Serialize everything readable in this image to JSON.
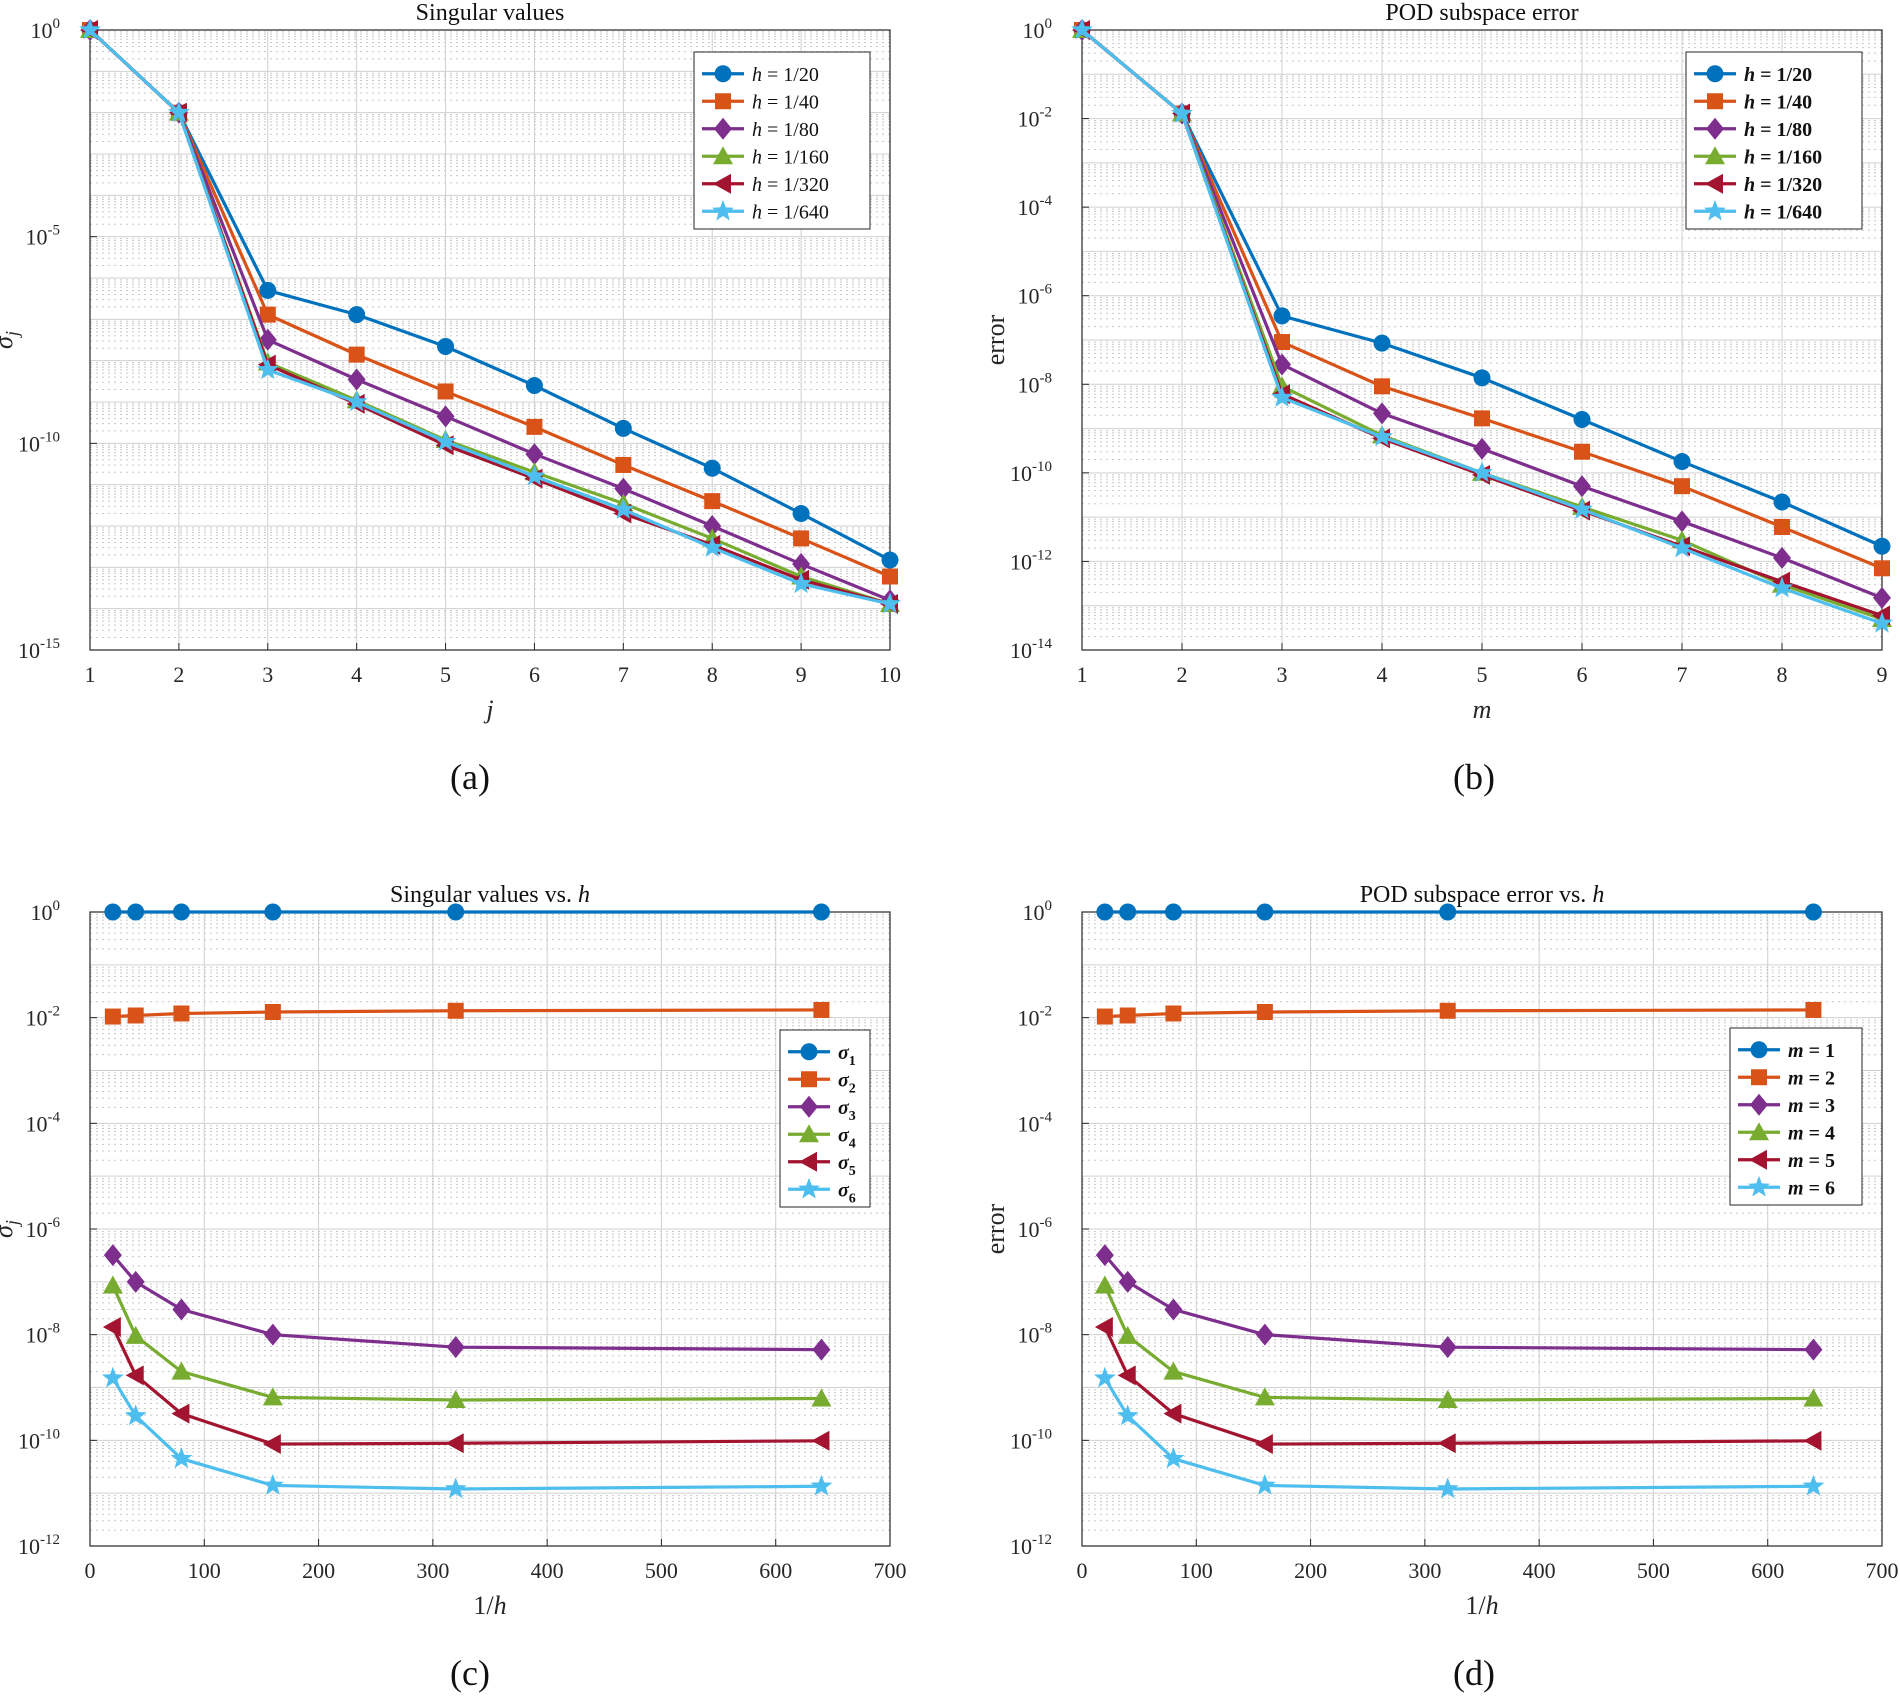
{
  "colors": [
    "#0072BD",
    "#D95319",
    "#7E2F8E",
    "#77AC30",
    "#A2142F",
    "#4DBEEE"
  ],
  "markers": [
    "circle",
    "square",
    "diamond",
    "triangle-up",
    "triangle-left",
    "star"
  ],
  "chart_data": [
    {
      "id": "a",
      "type": "line",
      "caption": "(a)",
      "title": "Singular values",
      "xlabel": "j",
      "ylabel": "σ_j",
      "yscale": "log",
      "xlim": [
        1,
        10
      ],
      "ylim": [
        1e-15,
        1
      ],
      "xticks": [
        1,
        2,
        3,
        4,
        5,
        6,
        7,
        8,
        9,
        10
      ],
      "yticks": [
        {
          "value": 1e-15,
          "base": "10",
          "exp": "-15"
        },
        {
          "value": 1e-10,
          "base": "10",
          "exp": "-10"
        },
        {
          "value": 1e-05,
          "base": "10",
          "exp": "-5"
        },
        {
          "value": 1,
          "base": "10",
          "exp": "0"
        }
      ],
      "legend_position": "top-right",
      "grid": true,
      "x": [
        1,
        2,
        3,
        4,
        5,
        6,
        7,
        8,
        9,
        10
      ],
      "series": [
        {
          "name": "h = 1/20",
          "values": [
            1,
            0.01,
            5e-07,
            1.3e-07,
            2.2e-08,
            2.5e-09,
            2.3e-10,
            2.5e-11,
            2e-12,
            1.5e-13
          ]
        },
        {
          "name": "h = 1/40",
          "values": [
            1,
            0.01,
            1.3e-07,
            1.4e-08,
            1.8e-09,
            2.5e-10,
            3e-11,
            4e-12,
            5e-13,
            6e-14
          ]
        },
        {
          "name": "h = 1/80",
          "values": [
            1,
            0.01,
            3.2e-08,
            3.5e-09,
            4.5e-10,
            5.5e-11,
            8e-12,
            1e-12,
            1.2e-13,
            1.6e-14
          ]
        },
        {
          "name": "h = 1/160",
          "values": [
            1,
            0.01,
            9e-09,
            1.1e-09,
            1.2e-10,
            2e-11,
            3.5e-12,
            5e-13,
            6e-14,
            1.3e-14
          ]
        },
        {
          "name": "h = 1/320",
          "values": [
            1,
            0.01,
            8e-09,
            9e-10,
            9e-11,
            1.4e-11,
            2e-12,
            3.5e-13,
            5e-14,
            1.3e-14
          ]
        },
        {
          "name": "h = 1/640",
          "values": [
            1,
            0.01,
            6e-09,
            1e-09,
            1.1e-10,
            1.6e-11,
            2.5e-12,
            3e-13,
            4e-14,
            1.3e-14
          ]
        }
      ]
    },
    {
      "id": "b",
      "type": "line",
      "caption": "(b)",
      "title": "POD subspace error",
      "xlabel": "m",
      "ylabel": "error",
      "yscale": "log",
      "xlim": [
        1,
        9
      ],
      "ylim": [
        1e-14,
        1
      ],
      "xticks": [
        1,
        2,
        3,
        4,
        5,
        6,
        7,
        8,
        9
      ],
      "yticks": [
        {
          "value": 1e-14,
          "base": "10",
          "exp": "-14"
        },
        {
          "value": 1e-12,
          "base": "10",
          "exp": "-12"
        },
        {
          "value": 1e-10,
          "base": "10",
          "exp": "-10"
        },
        {
          "value": 1e-08,
          "base": "10",
          "exp": "-8"
        },
        {
          "value": 1e-06,
          "base": "10",
          "exp": "-6"
        },
        {
          "value": 0.0001,
          "base": "10",
          "exp": "-4"
        },
        {
          "value": 0.01,
          "base": "10",
          "exp": "-2"
        },
        {
          "value": 1,
          "base": "10",
          "exp": "0"
        }
      ],
      "legend_position": "top-right",
      "grid": true,
      "x": [
        1,
        2,
        3,
        4,
        5,
        6,
        7,
        8,
        9
      ],
      "series": [
        {
          "name": "h = 1/20",
          "values": [
            1,
            0.013,
            3.5e-07,
            8.5e-08,
            1.4e-08,
            1.6e-09,
            1.8e-10,
            2.2e-11,
            2.2e-12
          ]
        },
        {
          "name": "h = 1/40",
          "values": [
            1,
            0.013,
            9e-08,
            9e-09,
            1.7e-09,
            3e-10,
            5e-11,
            6e-12,
            7e-13
          ]
        },
        {
          "name": "h = 1/80",
          "values": [
            1,
            0.013,
            2.8e-08,
            2.2e-09,
            3.5e-10,
            5e-11,
            8e-12,
            1.2e-12,
            1.5e-13
          ]
        },
        {
          "name": "h = 1/160",
          "values": [
            1,
            0.013,
            9e-09,
            7e-10,
            1e-10,
            1.7e-11,
            3e-12,
            3e-13,
            5e-14
          ]
        },
        {
          "name": "h = 1/320",
          "values": [
            1,
            0.013,
            6e-09,
            6e-10,
            9e-11,
            1.4e-11,
            2.2e-12,
            3.5e-13,
            6e-14
          ]
        },
        {
          "name": "h = 1/640",
          "values": [
            1,
            0.013,
            5e-09,
            6.5e-10,
            1e-10,
            1.5e-11,
            2e-12,
            2.5e-13,
            4e-14
          ]
        }
      ]
    },
    {
      "id": "c",
      "type": "line",
      "caption": "(c)",
      "title": "Singular values vs. h",
      "xlabel": "1/h",
      "ylabel": "σ_j",
      "yscale": "log",
      "xlim": [
        0,
        700
      ],
      "ylim": [
        1e-12,
        1
      ],
      "xticks": [
        0,
        100,
        200,
        300,
        400,
        500,
        600,
        700
      ],
      "yticks": [
        {
          "value": 1e-12,
          "base": "10",
          "exp": "-12"
        },
        {
          "value": 1e-10,
          "base": "10",
          "exp": "-10"
        },
        {
          "value": 1e-08,
          "base": "10",
          "exp": "-8"
        },
        {
          "value": 1e-06,
          "base": "10",
          "exp": "-6"
        },
        {
          "value": 0.0001,
          "base": "10",
          "exp": "-4"
        },
        {
          "value": 0.01,
          "base": "10",
          "exp": "-2"
        },
        {
          "value": 1,
          "base": "10",
          "exp": "0"
        }
      ],
      "legend_position": "right",
      "grid": true,
      "x": [
        20,
        40,
        80,
        160,
        320,
        640
      ],
      "series": [
        {
          "name": "σ1",
          "values": [
            1,
            1,
            1,
            1,
            1,
            1
          ]
        },
        {
          "name": "σ2",
          "values": [
            0.0105,
            0.011,
            0.012,
            0.0128,
            0.0135,
            0.014
          ]
        },
        {
          "name": "σ3",
          "values": [
            3.2e-07,
            1e-07,
            3e-08,
            1e-08,
            5.8e-09,
            5.2e-09
          ]
        },
        {
          "name": "σ4",
          "values": [
            8.5e-08,
            9.5e-09,
            2e-09,
            6.5e-10,
            5.8e-10,
            6.2e-10
          ]
        },
        {
          "name": "σ5",
          "values": [
            1.4e-08,
            1.7e-09,
            3.2e-10,
            8.5e-11,
            8.8e-11,
            9.8e-11
          ]
        },
        {
          "name": "σ6",
          "values": [
            1.5e-09,
            2.9e-10,
            4.5e-11,
            1.4e-11,
            1.2e-11,
            1.35e-11
          ]
        }
      ]
    },
    {
      "id": "d",
      "type": "line",
      "caption": "(d)",
      "title": "POD subspace error vs. h",
      "xlabel": "1/h",
      "ylabel": "error",
      "yscale": "log",
      "xlim": [
        0,
        700
      ],
      "ylim": [
        1e-12,
        1
      ],
      "xticks": [
        0,
        100,
        200,
        300,
        400,
        500,
        600,
        700
      ],
      "yticks": [
        {
          "value": 1e-12,
          "base": "10",
          "exp": "-12"
        },
        {
          "value": 1e-10,
          "base": "10",
          "exp": "-10"
        },
        {
          "value": 1e-08,
          "base": "10",
          "exp": "-8"
        },
        {
          "value": 1e-06,
          "base": "10",
          "exp": "-6"
        },
        {
          "value": 0.0001,
          "base": "10",
          "exp": "-4"
        },
        {
          "value": 0.01,
          "base": "10",
          "exp": "-2"
        },
        {
          "value": 1,
          "base": "10",
          "exp": "0"
        }
      ],
      "legend_position": "right",
      "grid": true,
      "x": [
        20,
        40,
        80,
        160,
        320,
        640
      ],
      "series": [
        {
          "name": "m = 1",
          "values": [
            1,
            1,
            1,
            1,
            1,
            1
          ]
        },
        {
          "name": "m = 2",
          "values": [
            0.0105,
            0.011,
            0.012,
            0.0128,
            0.0135,
            0.014
          ]
        },
        {
          "name": "m = 3",
          "values": [
            3.2e-07,
            1e-07,
            3e-08,
            1e-08,
            5.8e-09,
            5.2e-09
          ]
        },
        {
          "name": "m = 4",
          "values": [
            8.5e-08,
            9.5e-09,
            2e-09,
            6.5e-10,
            5.8e-10,
            6.2e-10
          ]
        },
        {
          "name": "m = 5",
          "values": [
            1.4e-08,
            1.7e-09,
            3.2e-10,
            8.5e-11,
            8.8e-11,
            9.8e-11
          ]
        },
        {
          "name": "m = 6",
          "values": [
            1.5e-09,
            2.9e-10,
            4.5e-11,
            1.4e-11,
            1.2e-11,
            1.35e-11
          ]
        }
      ]
    }
  ]
}
